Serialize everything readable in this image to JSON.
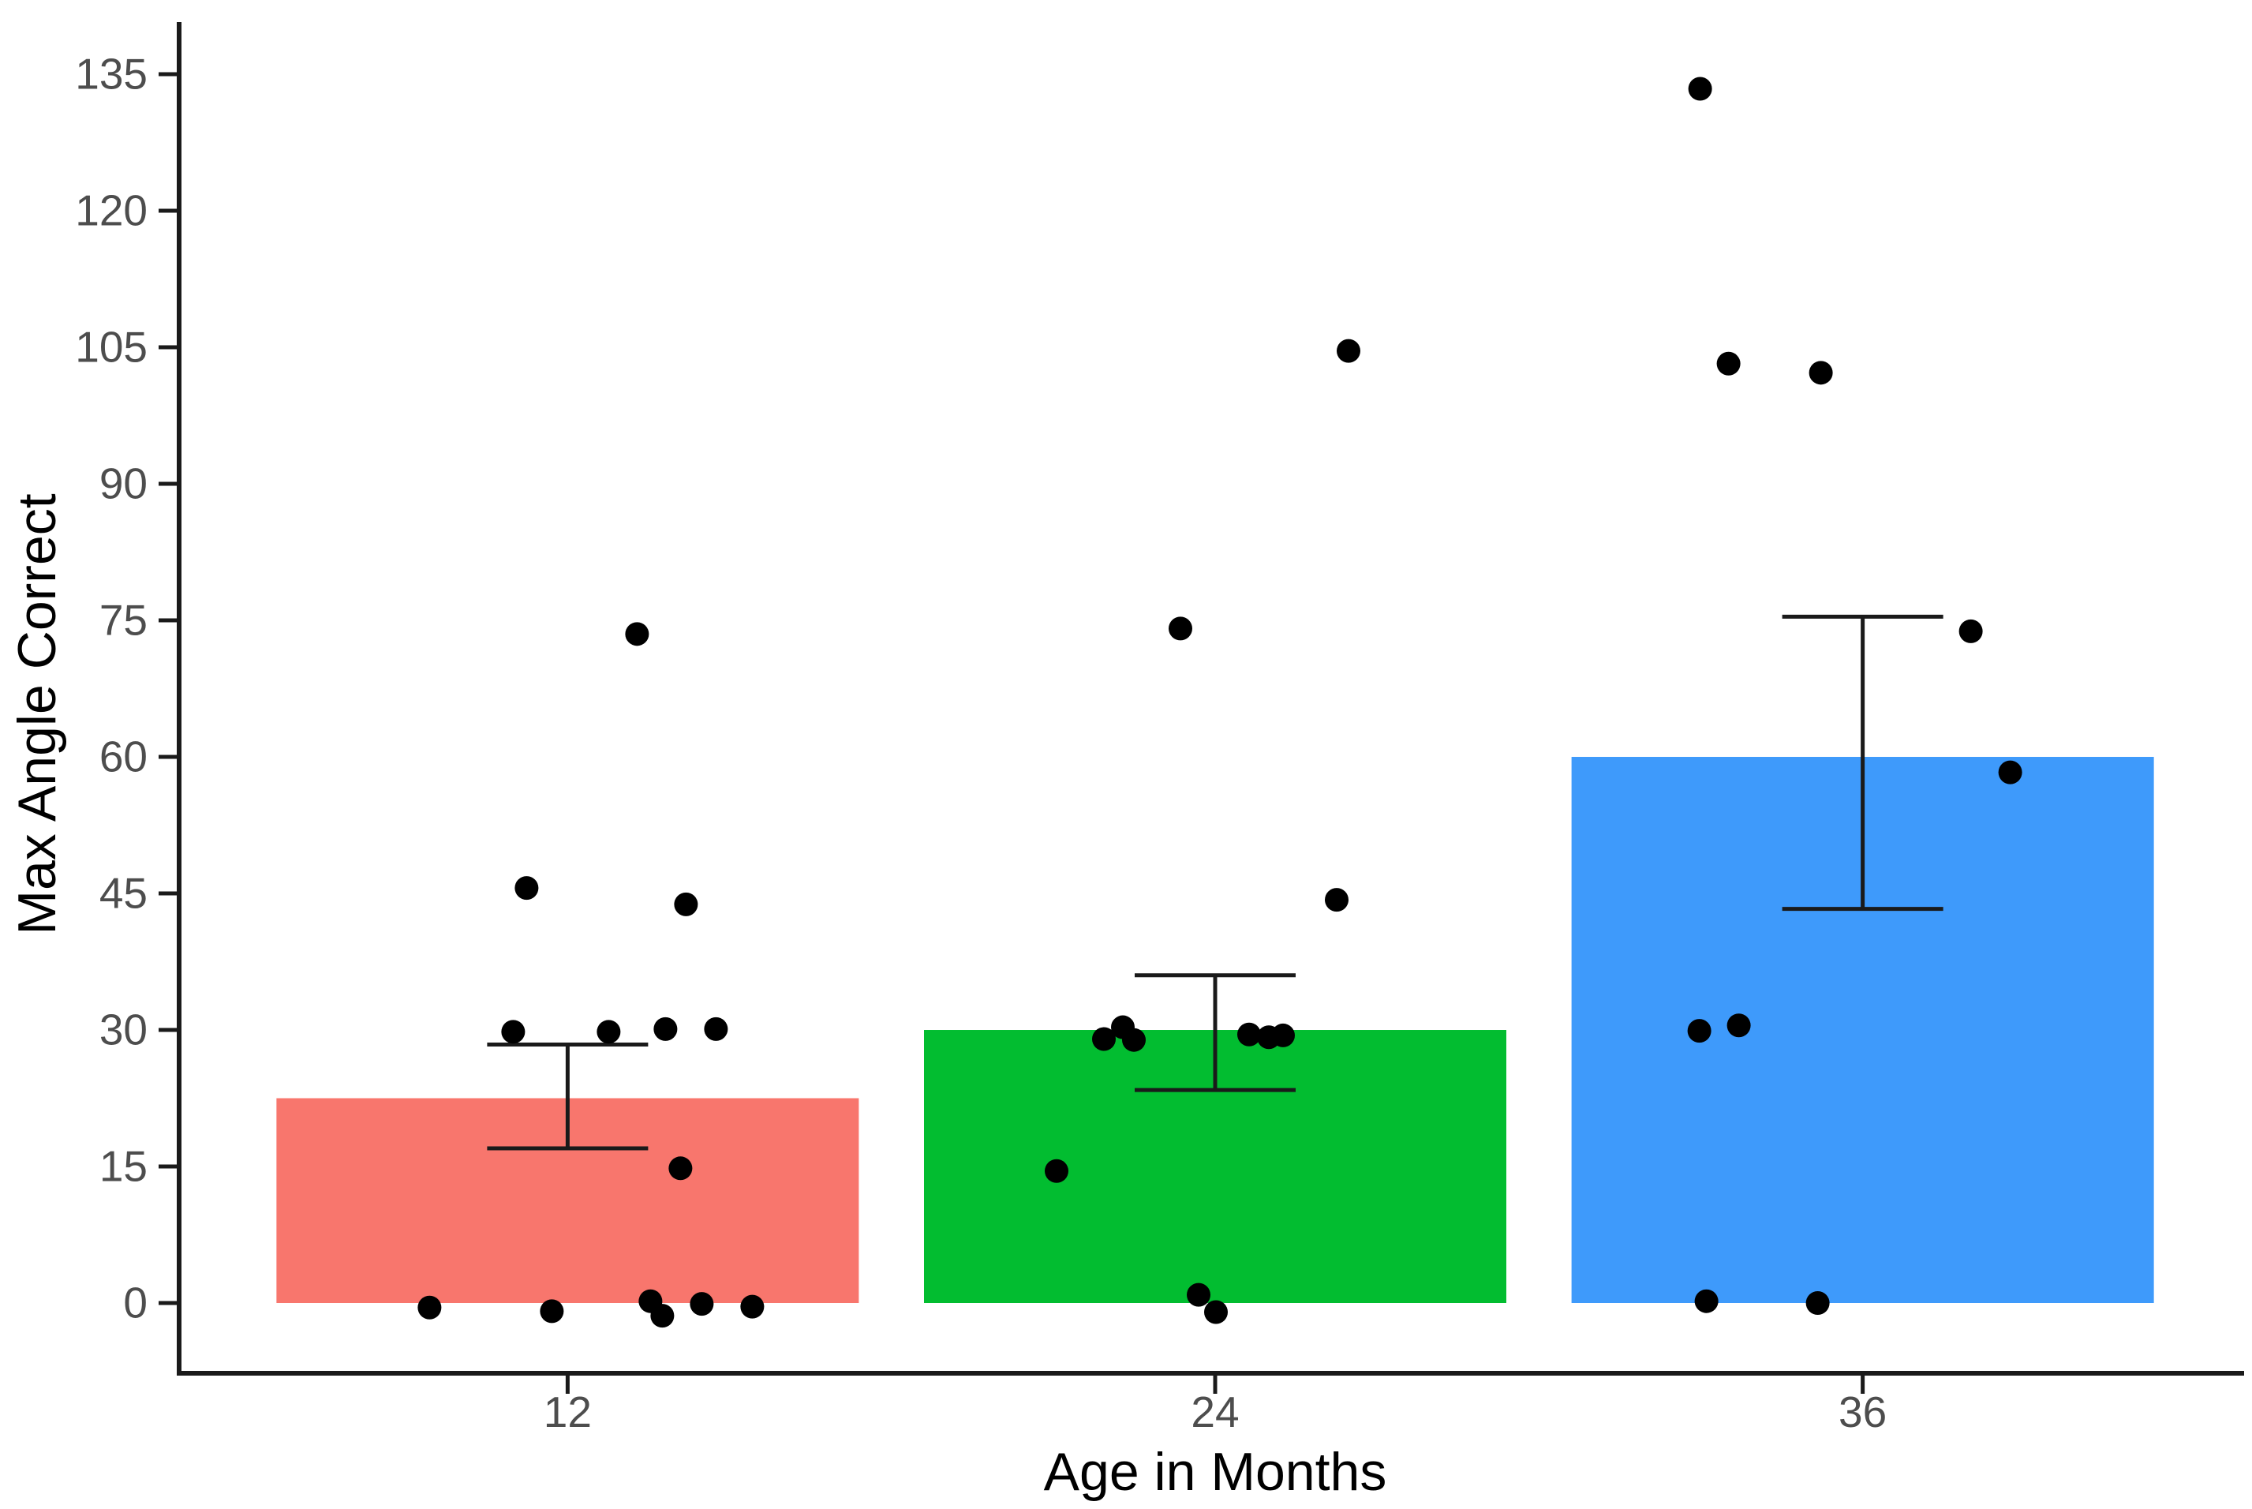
{
  "chart_data": {
    "type": "bar",
    "subtype": "bar-with-errorbars-and-jittered-points",
    "title": "",
    "xlabel": "Age in Months",
    "ylabel": "Max Angle Correct",
    "categories": [
      "12",
      "24",
      "36"
    ],
    "y_ticks": [
      0,
      15,
      30,
      45,
      60,
      75,
      90,
      105,
      120,
      135
    ],
    "ylim": [
      -7.7,
      140.7
    ],
    "grid": "off",
    "legend": "none",
    "colors": {
      "bar_fills": [
        "#F8766D",
        "#02BD30",
        "#3E9AFB"
      ],
      "point_color": "#000000",
      "axis_line_color": "#1A1A1A",
      "tick_label_color": "#4D4D4D",
      "axis_title_color": "#000000",
      "background": "#FFFFFF"
    },
    "series": [
      {
        "name": "12",
        "bar_value": 22.5,
        "error_low": 17.0,
        "error_high": 28.4,
        "fill": "#F8766D",
        "points": [
          {
            "dx": 88,
            "v": 73.5
          },
          {
            "dx": -52,
            "v": 45.6
          },
          {
            "dx": 150,
            "v": 43.8
          },
          {
            "dx": -69,
            "v": 29.8
          },
          {
            "dx": 52,
            "v": 29.8
          },
          {
            "dx": 124,
            "v": 30.1
          },
          {
            "dx": 188,
            "v": 30.1
          },
          {
            "dx": 143,
            "v": 14.8
          },
          {
            "dx": -175,
            "v": -0.5
          },
          {
            "dx": -20,
            "v": -0.9
          },
          {
            "dx": 105,
            "v": 0.2
          },
          {
            "dx": 120,
            "v": -1.4
          },
          {
            "dx": 170,
            "v": -0.1
          },
          {
            "dx": 234,
            "v": -0.4
          }
        ]
      },
      {
        "name": "24",
        "bar_value": 30.0,
        "error_low": 23.4,
        "error_high": 36.0,
        "fill": "#02BD30",
        "points": [
          {
            "dx": -44,
            "v": 74.1
          },
          {
            "dx": 169,
            "v": 104.6
          },
          {
            "dx": 154,
            "v": 44.3
          },
          {
            "dx": -141,
            "v": 29.0
          },
          {
            "dx": -117,
            "v": 30.3
          },
          {
            "dx": -103,
            "v": 28.9
          },
          {
            "dx": 43,
            "v": 29.5
          },
          {
            "dx": 68,
            "v": 29.2
          },
          {
            "dx": 86,
            "v": 29.4
          },
          {
            "dx": -201,
            "v": 14.5
          },
          {
            "dx": -21,
            "v": 0.9
          },
          {
            "dx": 1,
            "v": -1.0
          }
        ]
      },
      {
        "name": "36",
        "bar_value": 60.0,
        "error_low": 43.3,
        "error_high": 75.4,
        "fill": "#3E9AFB",
        "points": [
          {
            "dx": -206,
            "v": 133.4
          },
          {
            "dx": -170,
            "v": 103.2
          },
          {
            "dx": -53,
            "v": 102.2
          },
          {
            "dx": 137,
            "v": 73.8
          },
          {
            "dx": 187,
            "v": 58.3
          },
          {
            "dx": -207,
            "v": 29.9
          },
          {
            "dx": -157,
            "v": 30.5
          },
          {
            "dx": -198,
            "v": 0.2
          },
          {
            "dx": -57,
            "v": 0.0
          }
        ]
      }
    ]
  }
}
